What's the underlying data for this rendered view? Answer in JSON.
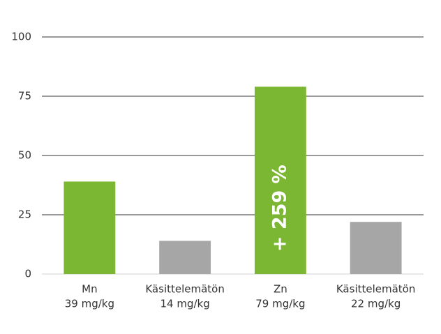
{
  "chart_data": {
    "type": "bar",
    "categories": [
      "Mn",
      "Käsittelemätön",
      "Zn",
      "Käsittelemätön"
    ],
    "values": [
      39,
      14,
      79,
      22
    ],
    "value_labels": [
      "39 mg/kg",
      "14 mg/kg",
      "79 mg/kg",
      "22 mg/kg"
    ],
    "colors": [
      "#7cb733",
      "#a6a6a6",
      "#7cb733",
      "#a6a6a6"
    ],
    "ylim": [
      0,
      100
    ],
    "yticks": [
      0,
      25,
      50,
      75,
      100
    ],
    "grid": true,
    "annotations": [
      {
        "text": "+ 259 %",
        "category": "Zn"
      }
    ]
  }
}
